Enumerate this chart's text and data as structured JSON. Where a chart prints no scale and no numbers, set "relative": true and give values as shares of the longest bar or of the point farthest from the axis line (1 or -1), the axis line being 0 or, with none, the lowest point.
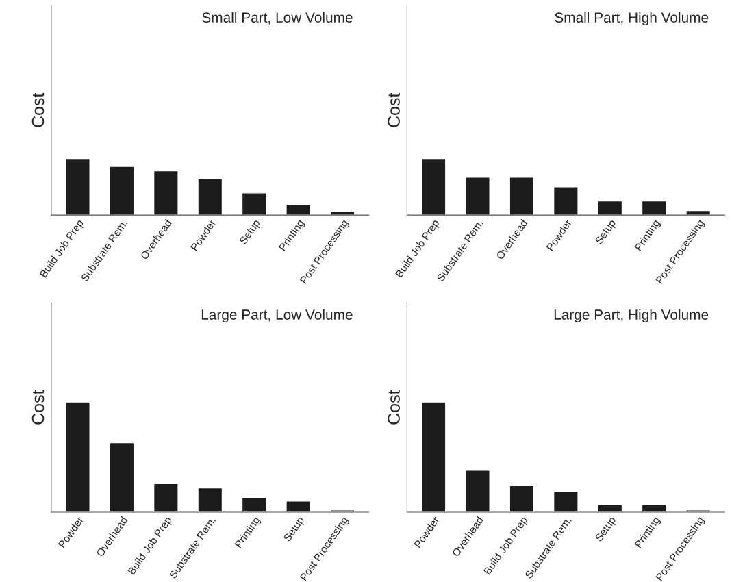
{
  "chart_data": [
    {
      "type": "bar",
      "title": "Small Part, Low Volume",
      "ylabel": "Cost",
      "relative": true,
      "color": "#1c1c1c",
      "categories": [
        "Build Job Prep",
        "Substrate Rem.",
        "Overhead",
        "Powder",
        "Setup",
        "Printing",
        "Post Processing"
      ],
      "values": [
        1,
        0.86,
        0.78,
        0.64,
        0.39,
        0.19,
        0.06
      ]
    },
    {
      "type": "bar",
      "title": "Small Part, High Volume",
      "ylabel": "Cost",
      "relative": true,
      "color": "#1c1c1c",
      "categories": [
        "Build Job Prep",
        "Substrate Rem.",
        "Overhead",
        "Powder",
        "Setup",
        "Printing",
        "Post Processing"
      ],
      "values": [
        1,
        0.67,
        0.67,
        0.5,
        0.25,
        0.25,
        0.08
      ]
    },
    {
      "type": "bar",
      "title": "Large Part, Low Volume",
      "ylabel": "Cost",
      "relative": true,
      "color": "#1c1c1c",
      "categories": [
        "Powder",
        "Overhead",
        "Build Job Prep",
        "Substrate Rem.",
        "Printing",
        "Setup",
        "Post Processing"
      ],
      "values": [
        1,
        0.63,
        0.26,
        0.22,
        0.13,
        0.1,
        0.02
      ]
    },
    {
      "type": "bar",
      "title": "Large Part, High Volume",
      "ylabel": "Cost",
      "relative": true,
      "color": "#1c1c1c",
      "categories": [
        "Powder",
        "Overhead",
        "Build Job Prep",
        "Substrate Rem.",
        "Setup",
        "Printing",
        "Post Processing"
      ],
      "values": [
        1,
        0.38,
        0.24,
        0.19,
        0.07,
        0.07,
        0.02
      ]
    }
  ]
}
